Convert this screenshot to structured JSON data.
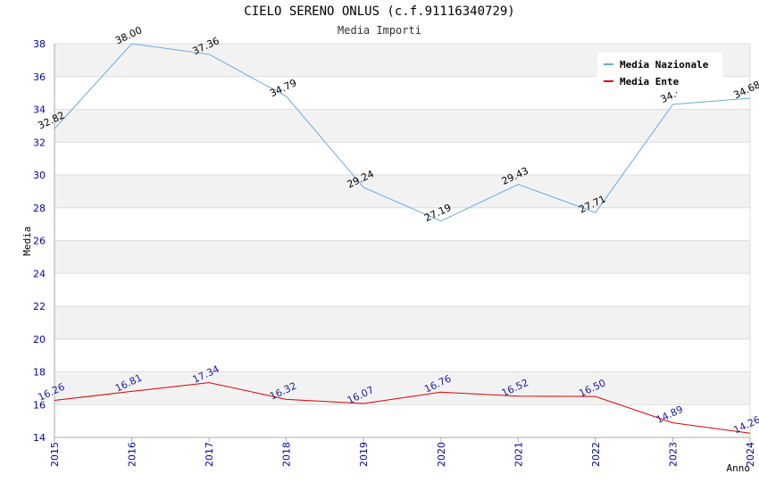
{
  "chart_data": {
    "type": "line",
    "title": "CIELO SERENO ONLUS (c.f.91116340729)",
    "subtitle": "Media Importi",
    "xlabel": "Anno",
    "ylabel": "Media",
    "categories": [
      "2015",
      "2016",
      "2017",
      "2018",
      "2019",
      "2020",
      "2021",
      "2022",
      "2023",
      "2024"
    ],
    "ylim": [
      14,
      38
    ],
    "yticks": [
      14,
      16,
      18,
      20,
      22,
      24,
      26,
      28,
      30,
      32,
      34,
      36,
      38
    ],
    "series": [
      {
        "name": "Media Nazionale",
        "color": "#6aaae6",
        "values": [
          32.82,
          38.0,
          37.36,
          34.79,
          29.24,
          27.19,
          29.43,
          27.71,
          34.3,
          34.68
        ],
        "labels": [
          "32.82",
          "38.00",
          "37.36",
          "34.79",
          "29.24",
          "27.19",
          "29.43",
          "27.71",
          "34.·",
          "34.68"
        ]
      },
      {
        "name": "Media Ente",
        "color": "#e00000",
        "values": [
          16.26,
          16.81,
          17.34,
          16.32,
          16.07,
          16.76,
          16.52,
          16.5,
          14.89,
          14.26
        ],
        "labels": [
          "16.26",
          "16.81",
          "17.34",
          "16.32",
          "16.07",
          "16.76",
          "16.52",
          "16.50",
          "14.89",
          "14.26"
        ]
      }
    ],
    "legend_position": "top-right",
    "grid": true
  }
}
